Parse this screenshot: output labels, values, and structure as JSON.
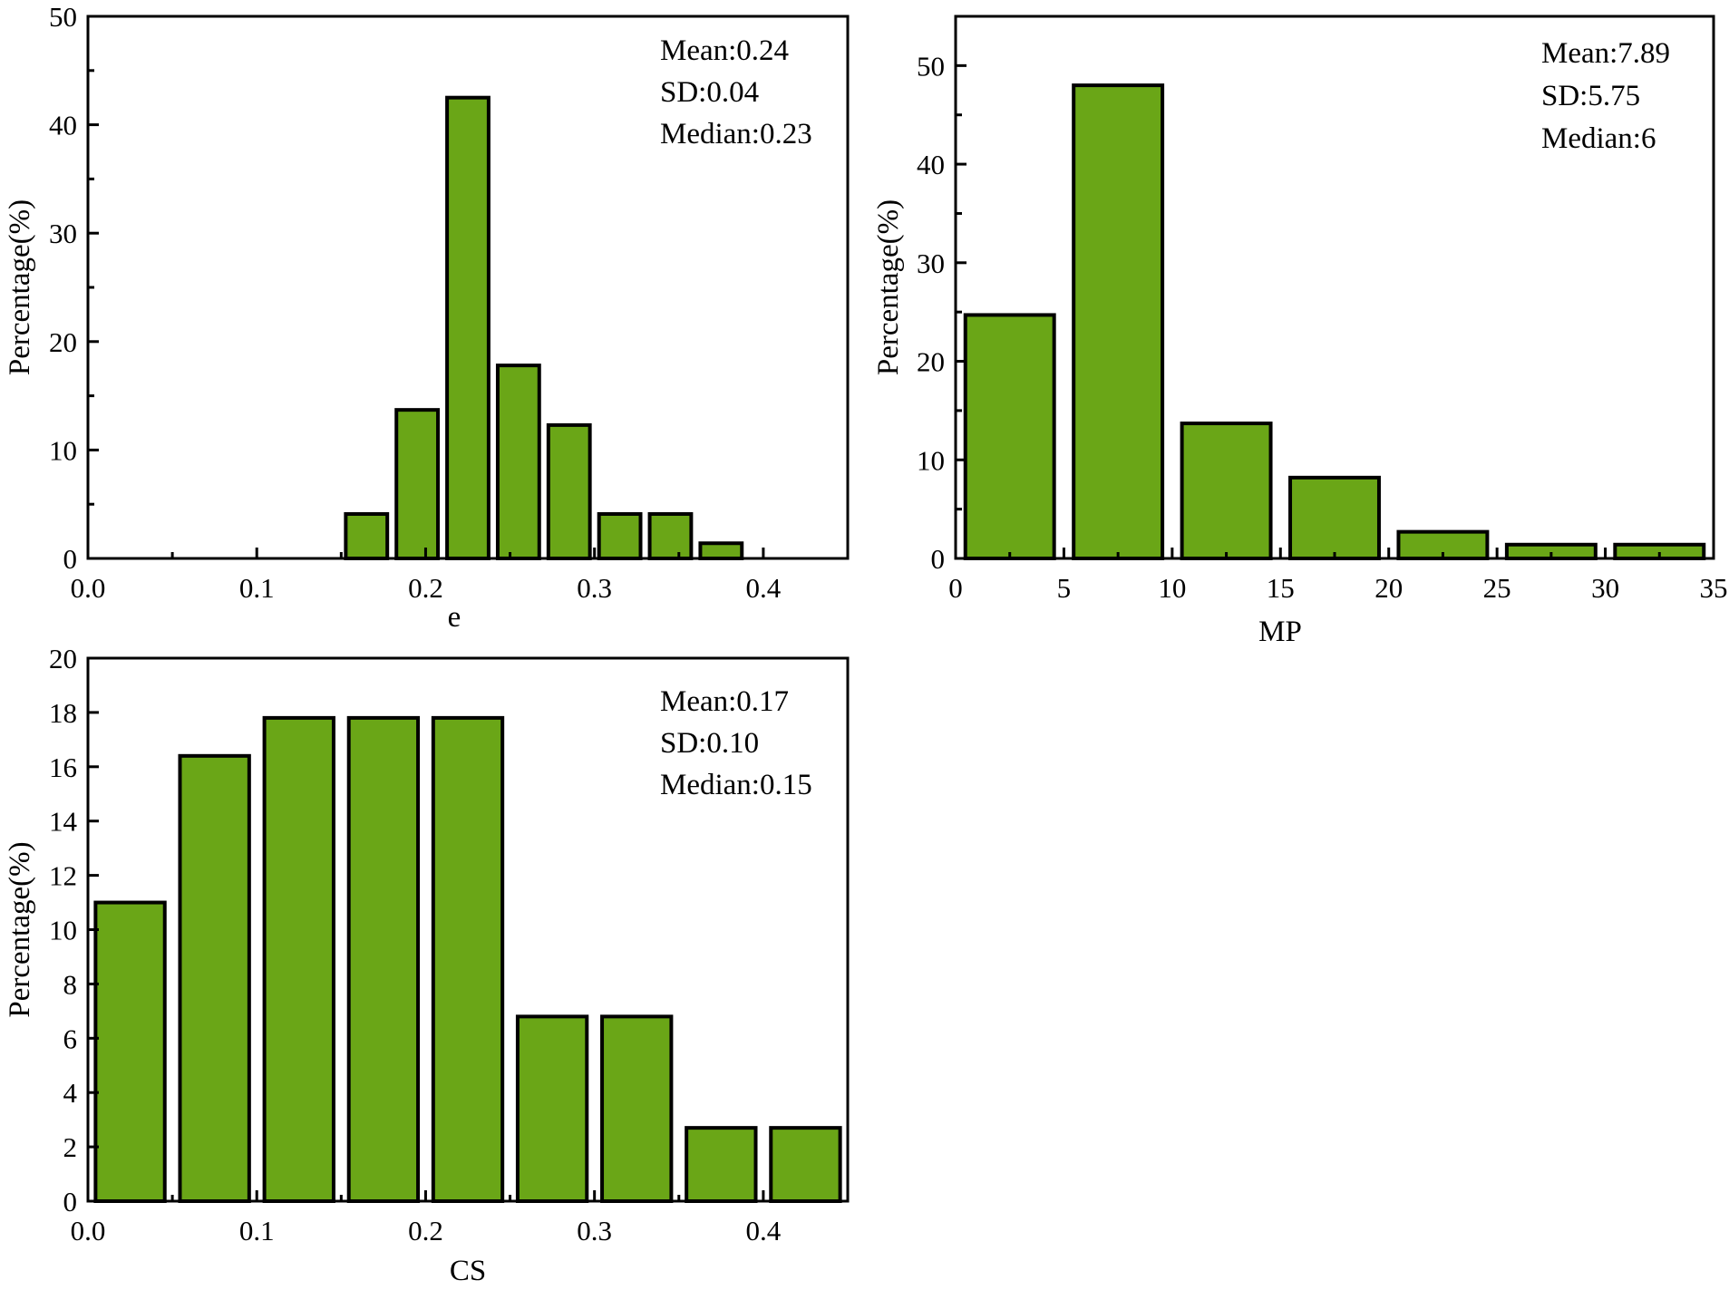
{
  "colors": {
    "bar_fill": "#6aa617",
    "bar_stroke": "#000000",
    "axis": "#000000",
    "background": "#ffffff"
  },
  "chart_data": [
    {
      "type": "bar",
      "title": "",
      "xlabel": "e",
      "ylabel": "Percentage(%)",
      "xlim": [
        0.0,
        0.45
      ],
      "ylim": [
        0,
        50
      ],
      "xticks": [
        0.0,
        0.1,
        0.2,
        0.3,
        0.4
      ],
      "xtick_labels": [
        "0.0",
        "0.1",
        "0.2",
        "0.3",
        "0.4"
      ],
      "yticks": [
        0,
        10,
        20,
        30,
        40,
        50
      ],
      "ytick_labels": [
        "0",
        "10",
        "20",
        "30",
        "40",
        "50"
      ],
      "bin_width": 0.03,
      "bins": [
        {
          "x": 0.165,
          "value": 4.1
        },
        {
          "x": 0.195,
          "value": 13.7
        },
        {
          "x": 0.225,
          "value": 42.5
        },
        {
          "x": 0.255,
          "value": 17.8
        },
        {
          "x": 0.285,
          "value": 12.3
        },
        {
          "x": 0.315,
          "value": 4.1
        },
        {
          "x": 0.345,
          "value": 4.1
        },
        {
          "x": 0.375,
          "value": 1.4
        }
      ],
      "stats": [
        "Mean:0.24",
        "SD:0.04",
        "Median:0.23"
      ],
      "grid": false,
      "legend": "none"
    },
    {
      "type": "bar",
      "title": "",
      "xlabel": "MP",
      "ylabel": "Percentage(%)",
      "xlim": [
        0,
        35
      ],
      "ylim": [
        0,
        55
      ],
      "xticks": [
        0,
        5,
        10,
        15,
        20,
        25,
        30,
        35
      ],
      "xtick_labels": [
        "0",
        "5",
        "10",
        "15",
        "20",
        "25",
        "30",
        "35"
      ],
      "yticks": [
        0,
        10,
        20,
        30,
        40,
        50
      ],
      "ytick_labels": [
        "0",
        "10",
        "20",
        "30",
        "40",
        "50"
      ],
      "bin_width": 5,
      "bins": [
        {
          "x": 2.5,
          "value": 24.7
        },
        {
          "x": 7.5,
          "value": 48.0
        },
        {
          "x": 12.5,
          "value": 13.7
        },
        {
          "x": 17.5,
          "value": 8.2
        },
        {
          "x": 22.5,
          "value": 2.7
        },
        {
          "x": 27.5,
          "value": 1.4
        },
        {
          "x": 32.5,
          "value": 1.4
        }
      ],
      "stats": [
        "Mean:7.89",
        "SD:5.75",
        "Median:6"
      ],
      "grid": false,
      "legend": "none"
    },
    {
      "type": "bar",
      "title": "",
      "xlabel": "CS",
      "ylabel": "Percentage(%)",
      "xlim": [
        0.0,
        0.45
      ],
      "ylim": [
        0,
        20
      ],
      "xticks": [
        0.0,
        0.1,
        0.2,
        0.3,
        0.4
      ],
      "xtick_labels": [
        "0.0",
        "0.1",
        "0.2",
        "0.3",
        "0.4"
      ],
      "yticks": [
        0,
        2,
        4,
        6,
        8,
        10,
        12,
        14,
        16,
        18,
        20
      ],
      "ytick_labels": [
        "0",
        "2",
        "4",
        "6",
        "8",
        "10",
        "12",
        "14",
        "16",
        "18",
        "20"
      ],
      "bin_width": 0.05,
      "bins": [
        {
          "x": 0.025,
          "value": 11.0
        },
        {
          "x": 0.075,
          "value": 16.4
        },
        {
          "x": 0.125,
          "value": 17.8
        },
        {
          "x": 0.175,
          "value": 17.8
        },
        {
          "x": 0.225,
          "value": 17.8
        },
        {
          "x": 0.275,
          "value": 6.8
        },
        {
          "x": 0.325,
          "value": 6.8
        },
        {
          "x": 0.375,
          "value": 2.7
        },
        {
          "x": 0.425,
          "value": 2.7
        }
      ],
      "stats": [
        "Mean:0.17",
        "SD:0.10",
        "Median:0.15"
      ],
      "grid": false,
      "legend": "none"
    }
  ]
}
